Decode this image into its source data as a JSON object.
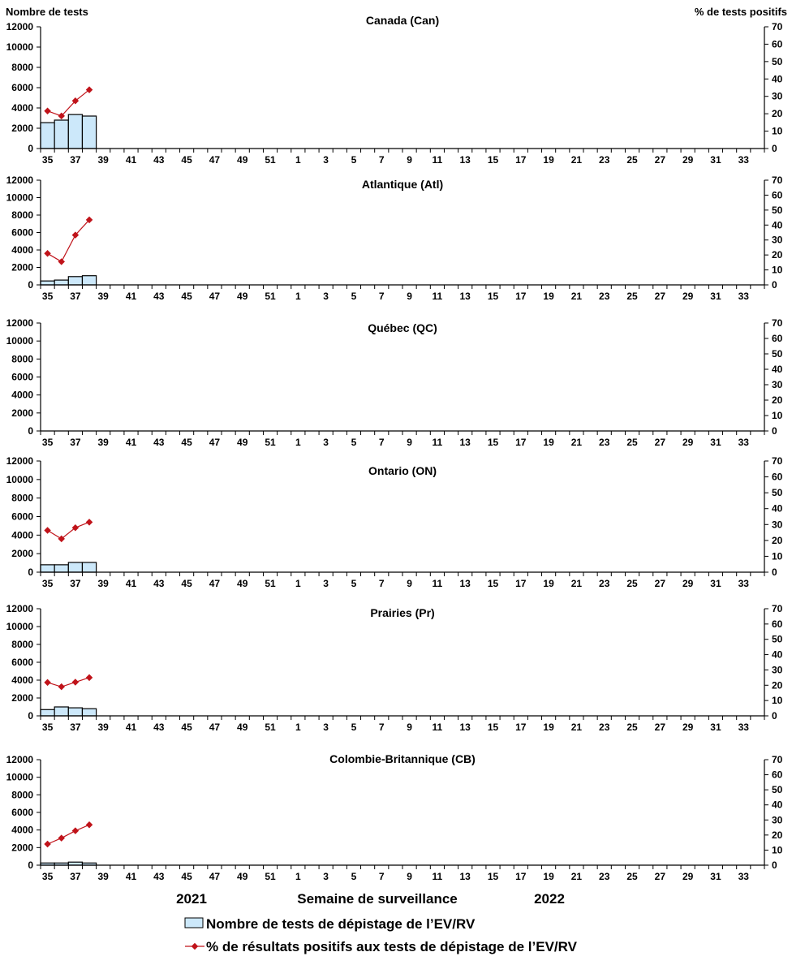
{
  "chart_data": [
    {
      "type": "bar+line",
      "title": "Canada (Can)",
      "bars": [
        2550,
        2800,
        3350,
        3200
      ],
      "line": [
        21.6,
        18.7,
        27.4,
        33.8
      ]
    },
    {
      "type": "bar+line",
      "title": "Atlantique (Atl)",
      "bars": [
        450,
        550,
        950,
        1050
      ],
      "line": [
        21,
        15.5,
        33.3,
        43.5
      ]
    },
    {
      "type": "bar+line",
      "title": "Québec (QC)",
      "bars": [],
      "line": []
    },
    {
      "type": "bar+line",
      "title": "Ontario (ON)",
      "bars": [
        800,
        800,
        1050,
        1050
      ],
      "line": [
        26.3,
        21,
        28,
        31.5
      ]
    },
    {
      "type": "bar+line",
      "title": "Prairies (Pr)",
      "bars": [
        700,
        1000,
        900,
        800
      ],
      "line": [
        21.8,
        19,
        22,
        25
      ]
    },
    {
      "type": "bar+line",
      "title": "Colombie-Britannique (CB)",
      "bars": [
        250,
        250,
        350,
        250
      ],
      "line": [
        14,
        18,
        22.8,
        26.8
      ]
    }
  ],
  "shared": {
    "categories": [
      "35",
      "36",
      "37",
      "38",
      "39",
      "40",
      "41",
      "42",
      "43",
      "44",
      "45",
      "46",
      "47",
      "48",
      "49",
      "50",
      "51",
      "52",
      "1",
      "2",
      "3",
      "4",
      "5",
      "6",
      "7",
      "8",
      "9",
      "10",
      "11",
      "12",
      "13",
      "14",
      "15",
      "16",
      "17",
      "18",
      "19",
      "20",
      "21",
      "22",
      "23",
      "24",
      "25",
      "26",
      "27",
      "28",
      "29",
      "30",
      "31",
      "32",
      "33",
      "34"
    ],
    "ylabel_left": "Nombre de tests",
    "ylabel_right": "% de tests positifs",
    "ylim_left": [
      0,
      12000
    ],
    "yticks_left": [
      "0",
      "2000",
      "4000",
      "6000",
      "8000",
      "10000",
      "12000"
    ],
    "ylim_right": [
      0,
      70
    ],
    "yticks_right": [
      "0",
      "10",
      "20",
      "30",
      "40",
      "50",
      "60",
      "70"
    ],
    "xlabel": "Semaine de surveillance",
    "year_left": "2021",
    "year_right": "2022",
    "legend": {
      "bars": "Nombre de tests de dépistage de l’EV/RV",
      "line": "% de résultats positifs aux tests de dépistage de l’EV/RV"
    },
    "colors": {
      "bar_fill": "#cce8fa",
      "bar_stroke": "#000000",
      "line": "#c0131a"
    }
  }
}
